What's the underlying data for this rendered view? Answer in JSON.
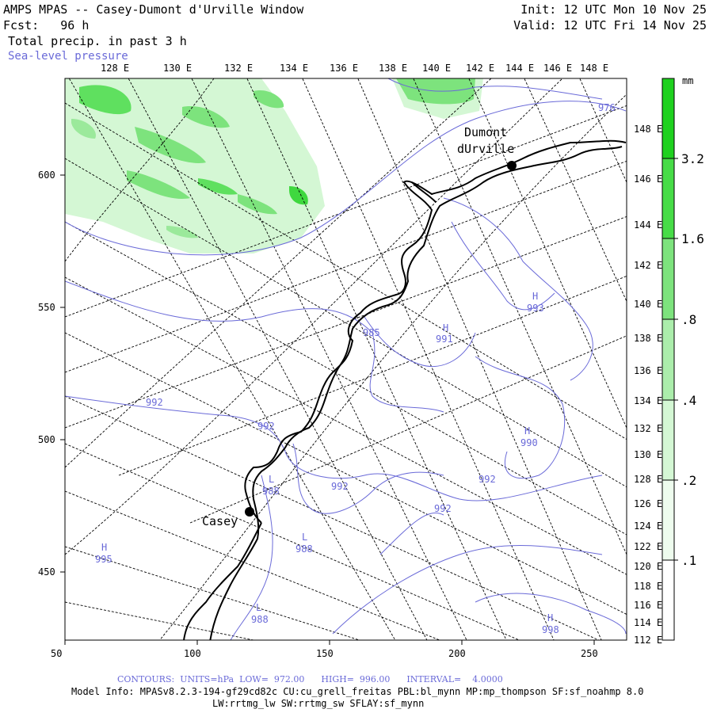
{
  "header": {
    "title": "AMPS MPAS -- Casey-Dumont d'Urville Window",
    "forecast": "Fcst:   96 h",
    "field": "Total precip. in past 3 h",
    "overlay": "Sea-level pressure",
    "init": "Init: 12 UTC Mon 10 Nov 25",
    "valid": "Valid: 12 UTC Fri 14 Nov 25"
  },
  "colors": {
    "contour": "#6a6ad8",
    "precip_light": "#c8f5c8",
    "precip_mid": "#7de37d",
    "precip_dark": "#1fd11f",
    "coast": "#000000"
  },
  "axes": {
    "x_ticks": [
      "50",
      "100",
      "150",
      "200",
      "250"
    ],
    "y_ticks": [
      "600",
      "550",
      "500",
      "450"
    ],
    "lon_labels": [
      "128 E",
      "130 E",
      "132 E",
      "134 E",
      "136 E",
      "138 E",
      "140 E",
      "142 E",
      "144 E",
      "146 E",
      "148 E"
    ],
    "right_lon_labels": [
      "148 E",
      "146 E",
      "144 E",
      "142 E",
      "140 E",
      "138 E",
      "136 E",
      "134 E",
      "132 E",
      "130 E",
      "128 E",
      "126 E",
      "124 E",
      "122 E",
      "120 E",
      "118 E",
      "116 E",
      "114 E",
      "112 E"
    ]
  },
  "places": [
    {
      "name": "Dumont",
      "name2": "dUrville"
    },
    {
      "name": "Casey"
    }
  ],
  "pressure_labels": [
    "976",
    "985",
    "H",
    "991",
    "H",
    "993",
    "992",
    "992",
    "988",
    "L",
    "992",
    "992",
    "992",
    "H",
    "990",
    "L",
    "988",
    "H",
    "995",
    "L",
    "988",
    "H",
    "998"
  ],
  "colorbar": {
    "unit": "mm",
    "levels": [
      "3.2",
      "1.6",
      ".8",
      ".4",
      ".2",
      ".1"
    ]
  },
  "footer": {
    "contours": "CONTOURS:  UNITS=hPa  LOW=  972.00      HIGH=  996.00      INTERVAL=    4.0000",
    "model_info": "Model Info: MPASv8.2.3-194-gf29cd82c CU:cu_grell_freitas PBL:bl_mynn MP:mp_thompson SF:sf_noahmp 8.0",
    "physics": "LW:rrtmg_lw SW:rrtmg_sw SFLAY:sf_mynn"
  }
}
